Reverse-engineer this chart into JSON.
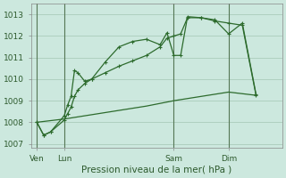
{
  "background_color": "#cce8de",
  "grid_color": "#aaccbb",
  "line_color": "#2d6b2d",
  "title": "Pression niveau de la mer( hPa )",
  "ylim": [
    1006.8,
    1013.5
  ],
  "yticks": [
    1007,
    1008,
    1009,
    1010,
    1011,
    1012,
    1013
  ],
  "xtick_labels": [
    "Ven",
    "Lun",
    "Sam",
    "Dim"
  ],
  "xtick_positions": [
    0,
    24,
    120,
    168
  ],
  "vline_positions": [
    0,
    24,
    120,
    168
  ],
  "xlim": [
    -5,
    215
  ],
  "series1_x": [
    0,
    6,
    12,
    24,
    27,
    30,
    33,
    36,
    42,
    48,
    60,
    72,
    84,
    96,
    108,
    114,
    120,
    126,
    132,
    144,
    156,
    168,
    180,
    192
  ],
  "series1_y": [
    1008.0,
    1007.4,
    1007.55,
    1008.3,
    1008.8,
    1009.2,
    1010.4,
    1010.3,
    1009.9,
    1010.0,
    1010.8,
    1011.5,
    1011.75,
    1011.85,
    1011.6,
    1012.15,
    1011.1,
    1011.1,
    1012.9,
    1012.85,
    1012.75,
    1012.1,
    1012.6,
    1009.3
  ],
  "series2_x": [
    0,
    6,
    12,
    24,
    27,
    30,
    33,
    36,
    42,
    48,
    60,
    72,
    84,
    96,
    108,
    114,
    120,
    126,
    132,
    144,
    156,
    168,
    180,
    192
  ],
  "series2_y": [
    1008.0,
    1007.4,
    1007.55,
    1008.1,
    1008.4,
    1008.7,
    1009.2,
    1009.5,
    1009.8,
    1010.0,
    1010.3,
    1010.6,
    1010.85,
    1011.1,
    1011.5,
    1011.9,
    1012.0,
    1012.1,
    1012.85,
    1012.85,
    1012.7,
    1012.6,
    1012.5,
    1009.25
  ],
  "series3_x": [
    0,
    24,
    48,
    72,
    96,
    120,
    144,
    168,
    192
  ],
  "series3_y": [
    1008.0,
    1008.15,
    1008.35,
    1008.55,
    1008.75,
    1009.0,
    1009.2,
    1009.4,
    1009.25
  ],
  "title_fontsize": 7.5,
  "tick_fontsize": 6.5
}
